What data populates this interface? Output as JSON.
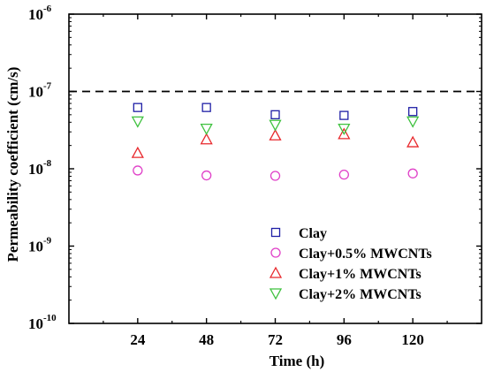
{
  "chart_data": {
    "type": "scatter",
    "title": "",
    "xlabel": "Time (h)",
    "ylabel": "Permeability coefficient (cm/s)",
    "x": [
      24,
      48,
      72,
      96,
      120
    ],
    "xlim": [
      0,
      144
    ],
    "ylim": [
      1e-10,
      1e-06
    ],
    "yscale": "log",
    "yticks": [
      {
        "value": 1e-10,
        "base": "10",
        "exp": "-10"
      },
      {
        "value": 1e-09,
        "base": "10",
        "exp": "-9"
      },
      {
        "value": 1e-08,
        "base": "10",
        "exp": "-8"
      },
      {
        "value": 1e-07,
        "base": "10",
        "exp": "-7"
      },
      {
        "value": 1e-06,
        "base": "10",
        "exp": "-6"
      }
    ],
    "grid": false,
    "legend_position": "bottom-right",
    "reference_line": {
      "value": 1e-07,
      "style": "dashed",
      "color": "#000000"
    },
    "series": [
      {
        "name": "Clay",
        "marker": "square",
        "color": "#1f1fa6",
        "values": [
          6.2e-08,
          6.2e-08,
          5e-08,
          4.9e-08,
          5.5e-08
        ]
      },
      {
        "name": "Clay+0.5% MWCNTs",
        "marker": "circle",
        "color": "#e040c8",
        "values": [
          9.5e-09,
          8.2e-09,
          8.1e-09,
          8.4e-09,
          8.7e-09
        ]
      },
      {
        "name": "Clay+1% MWCNTs",
        "marker": "triangle-up",
        "color": "#e8282c",
        "values": [
          1.6e-08,
          2.4e-08,
          2.7e-08,
          2.8e-08,
          2.2e-08
        ]
      },
      {
        "name": "Clay+2% MWCNTs",
        "marker": "triangle-down",
        "color": "#3ec13e",
        "values": [
          4.1e-08,
          3.3e-08,
          3.7e-08,
          3.3e-08,
          4.1e-08
        ]
      }
    ]
  }
}
